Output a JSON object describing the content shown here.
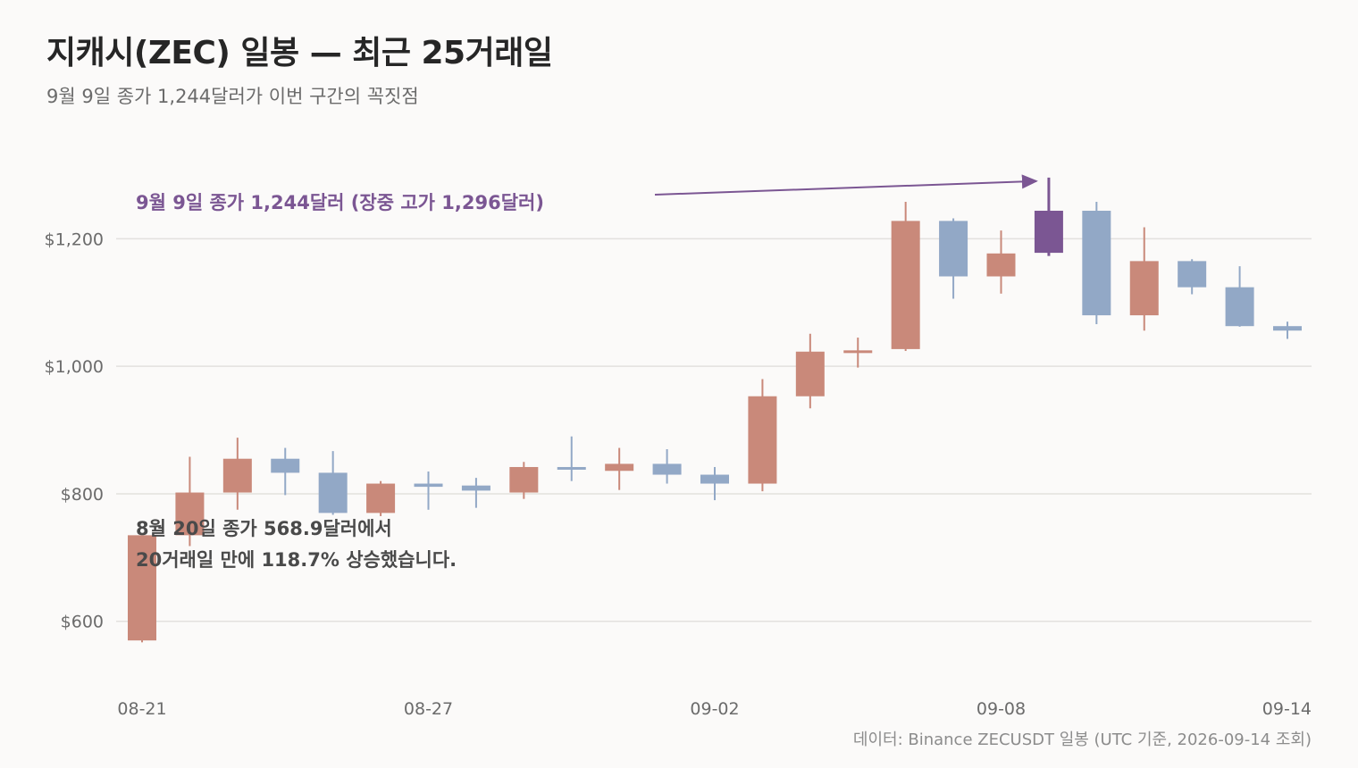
{
  "header": {
    "title": "지캐시(ZEC) 일봉 — 최근 25거래일",
    "subtitle": "9월 9일 종가 1,244달러가 이번 구간의 꼭짓점"
  },
  "footer": {
    "source": "데이터: Binance ZECUSDT 일봉 (UTC 기준, 2026-09-14 조회)"
  },
  "colors": {
    "up": "#c9897a",
    "down": "#92a8c6",
    "highlight": "#7b5693",
    "grid": "#e3e1de"
  },
  "chart_data": {
    "type": "candlestick",
    "ylim": [
      510,
      1300
    ],
    "yticks": [
      {
        "value": 600,
        "label": "$600"
      },
      {
        "value": 800,
        "label": "$800"
      },
      {
        "value": 1000,
        "label": "$1,000"
      },
      {
        "value": 1200,
        "label": "$1,200"
      }
    ],
    "xtick_labels": [
      {
        "index": 0,
        "label": "08-21"
      },
      {
        "index": 6,
        "label": "08-27"
      },
      {
        "index": 12,
        "label": "09-02"
      },
      {
        "index": 18,
        "label": "09-08"
      },
      {
        "index": 24,
        "label": "09-14"
      }
    ],
    "grid": true,
    "highlight_index": 19,
    "candles": [
      {
        "date": "08-21",
        "open": 570,
        "high": 735,
        "low": 567,
        "close": 735
      },
      {
        "date": "08-22",
        "open": 735,
        "high": 858,
        "low": 718,
        "close": 802
      },
      {
        "date": "08-23",
        "open": 802,
        "high": 888,
        "low": 775,
        "close": 855
      },
      {
        "date": "08-24",
        "open": 855,
        "high": 872,
        "low": 798,
        "close": 833
      },
      {
        "date": "08-25",
        "open": 833,
        "high": 867,
        "low": 767,
        "close": 770
      },
      {
        "date": "08-26",
        "open": 770,
        "high": 820,
        "low": 765,
        "close": 816
      },
      {
        "date": "08-27",
        "open": 816,
        "high": 835,
        "low": 775,
        "close": 811
      },
      {
        "date": "08-28",
        "open": 813,
        "high": 825,
        "low": 778,
        "close": 805
      },
      {
        "date": "08-29",
        "open": 802,
        "high": 850,
        "low": 792,
        "close": 842
      },
      {
        "date": "08-30",
        "open": 842,
        "high": 890,
        "low": 820,
        "close": 838
      },
      {
        "date": "08-31",
        "open": 836,
        "high": 872,
        "low": 806,
        "close": 847
      },
      {
        "date": "09-01",
        "open": 847,
        "high": 870,
        "low": 816,
        "close": 830
      },
      {
        "date": "09-02",
        "open": 830,
        "high": 842,
        "low": 790,
        "close": 816
      },
      {
        "date": "09-03",
        "open": 816,
        "high": 980,
        "low": 804,
        "close": 953
      },
      {
        "date": "09-04",
        "open": 953,
        "high": 1051,
        "low": 934,
        "close": 1023
      },
      {
        "date": "09-05",
        "open": 1022,
        "high": 1045,
        "low": 998,
        "close": 1025
      },
      {
        "date": "09-06",
        "open": 1027,
        "high": 1258,
        "low": 1024,
        "close": 1228
      },
      {
        "date": "09-07",
        "open": 1228,
        "high": 1232,
        "low": 1106,
        "close": 1141
      },
      {
        "date": "09-08",
        "open": 1141,
        "high": 1213,
        "low": 1114,
        "close": 1177
      },
      {
        "date": "09-09",
        "open": 1178,
        "high": 1296,
        "low": 1173,
        "close": 1244
      },
      {
        "date": "09-10",
        "open": 1244,
        "high": 1258,
        "low": 1066,
        "close": 1080
      },
      {
        "date": "09-11",
        "open": 1080,
        "high": 1218,
        "low": 1056,
        "close": 1165
      },
      {
        "date": "09-12",
        "open": 1165,
        "high": 1168,
        "low": 1113,
        "close": 1124
      },
      {
        "date": "09-13",
        "open": 1124,
        "high": 1157,
        "low": 1062,
        "close": 1063
      },
      {
        "date": "09-14",
        "open": 1063,
        "high": 1070,
        "low": 1043,
        "close": 1056
      }
    ],
    "annotations": [
      {
        "id": "peak",
        "text": "9월 9일 종가 1,244달러 (장중 고가 1,296달러)",
        "target_index": 19
      },
      {
        "id": "start_line1",
        "text": "8월 20일 종가 568.9달러에서"
      },
      {
        "id": "start_line2",
        "text": "20거래일 만에 118.7% 상승했습니다."
      }
    ]
  }
}
